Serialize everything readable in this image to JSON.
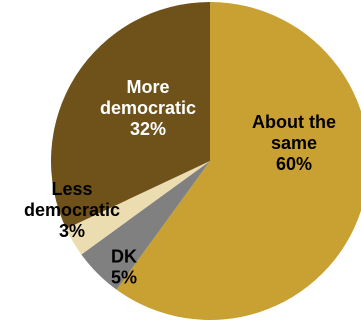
{
  "chart_data": {
    "type": "pie",
    "title": "",
    "start_angle_deg": 0,
    "direction": "clockwise",
    "slices": [
      {
        "label_lines": [
          "About the",
          "same"
        ],
        "pct_text": "60%",
        "value": 60,
        "color": "#C9A032",
        "text_color": "#000000"
      },
      {
        "label_lines": [
          "DK"
        ],
        "pct_text": "5%",
        "value": 5,
        "color": "#808080",
        "text_color": "#000000"
      },
      {
        "label_lines": [
          "Less",
          "democratic"
        ],
        "pct_text": "3%",
        "value": 3,
        "color": "#ECDDB0",
        "text_color": "#000000"
      },
      {
        "label_lines": [
          "More",
          "democratic"
        ],
        "pct_text": "32%",
        "value": 32,
        "color": "#6E521A",
        "text_color": "#FFFFFF"
      }
    ]
  }
}
